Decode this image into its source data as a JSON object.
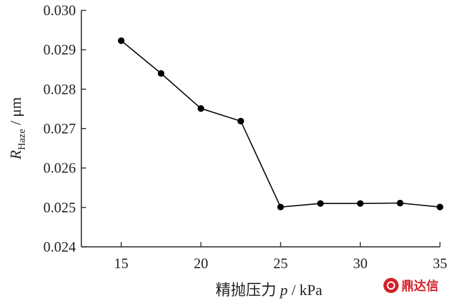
{
  "chart_data": {
    "type": "line",
    "x": [
      15,
      17.5,
      20,
      22.5,
      25,
      27.5,
      30,
      32.5,
      35
    ],
    "series": [
      {
        "values": [
          0.02923,
          0.0284,
          0.02751,
          0.02719,
          0.02501,
          0.0251,
          0.0251,
          0.02511,
          0.02501
        ]
      }
    ],
    "xlim": [
      12.5,
      35
    ],
    "ylim": [
      0.024,
      0.03
    ],
    "x_ticks": [
      15,
      20,
      25,
      30,
      35
    ],
    "y_ticks": [
      "0.024",
      "0.025",
      "0.026",
      "0.027",
      "0.028",
      "0.029",
      "0.030"
    ],
    "xlabel": {
      "prefix": "精抛压力 ",
      "var": "p",
      "unit": " / kPa"
    },
    "ylabel": {
      "var": "R",
      "subscript": "Haze",
      "unit": " / μm"
    },
    "grid": false,
    "line_color": "#000000",
    "marker_color": "#000000"
  },
  "watermark": {
    "text": "鼎达信",
    "color": "#d2232a"
  }
}
